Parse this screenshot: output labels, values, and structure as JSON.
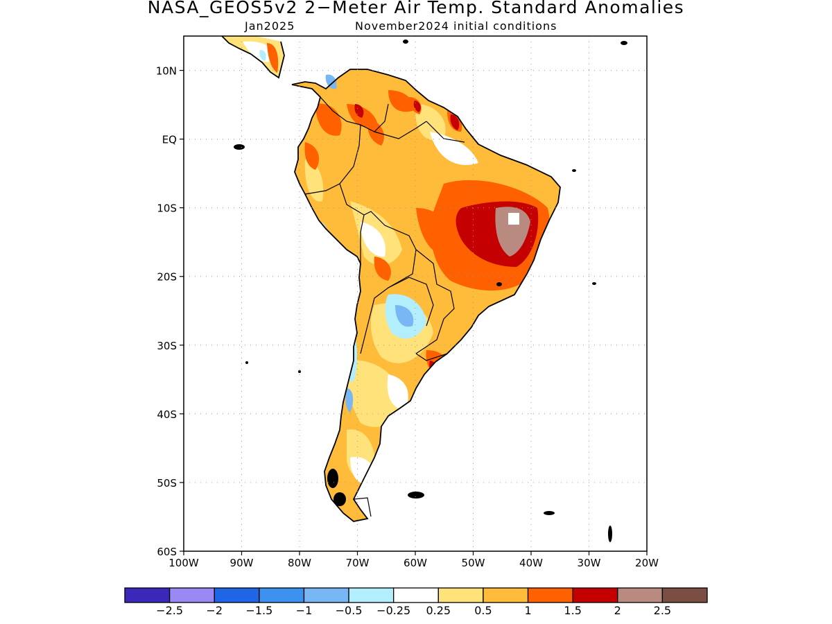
{
  "title": "NASA_GEOS5v2 2−Meter Air Temp. Standard Anomalies",
  "subtitle_left": "Jan2025",
  "subtitle_right": "November2024 initial conditions",
  "map": {
    "lon_range": [
      -100,
      -20
    ],
    "lat_range": [
      -60,
      15
    ],
    "lon_ticks": [
      {
        "value": -100,
        "label": "100W"
      },
      {
        "value": -90,
        "label": "90W"
      },
      {
        "value": -80,
        "label": "80W"
      },
      {
        "value": -70,
        "label": "70W"
      },
      {
        "value": -60,
        "label": "60W"
      },
      {
        "value": -50,
        "label": "50W"
      },
      {
        "value": -40,
        "label": "40W"
      },
      {
        "value": -30,
        "label": "30W"
      },
      {
        "value": -20,
        "label": "20W"
      }
    ],
    "lat_ticks": [
      {
        "value": 10,
        "label": "10N"
      },
      {
        "value": 0,
        "label": "EQ"
      },
      {
        "value": -10,
        "label": "10S"
      },
      {
        "value": -20,
        "label": "20S"
      },
      {
        "value": -30,
        "label": "30S"
      },
      {
        "value": -40,
        "label": "40S"
      },
      {
        "value": -50,
        "label": "50S"
      },
      {
        "value": -60,
        "label": "60S"
      }
    ],
    "grid": "dotted"
  },
  "colorbar": {
    "colors": [
      "#3b28b8",
      "#9a88f5",
      "#1f66e6",
      "#3d92f0",
      "#78b6f5",
      "#b2eefb",
      "#ffffff",
      "#ffe27a",
      "#ffbb3a",
      "#ff6000",
      "#c40000",
      "#b98a80",
      "#7a4e42"
    ],
    "labels": [
      "−2.5",
      "−2",
      "−1.5",
      "−1",
      "−0.5",
      "−0.25",
      "0.25",
      "0.5",
      "1",
      "1.5",
      "2",
      "2.5"
    ]
  }
}
